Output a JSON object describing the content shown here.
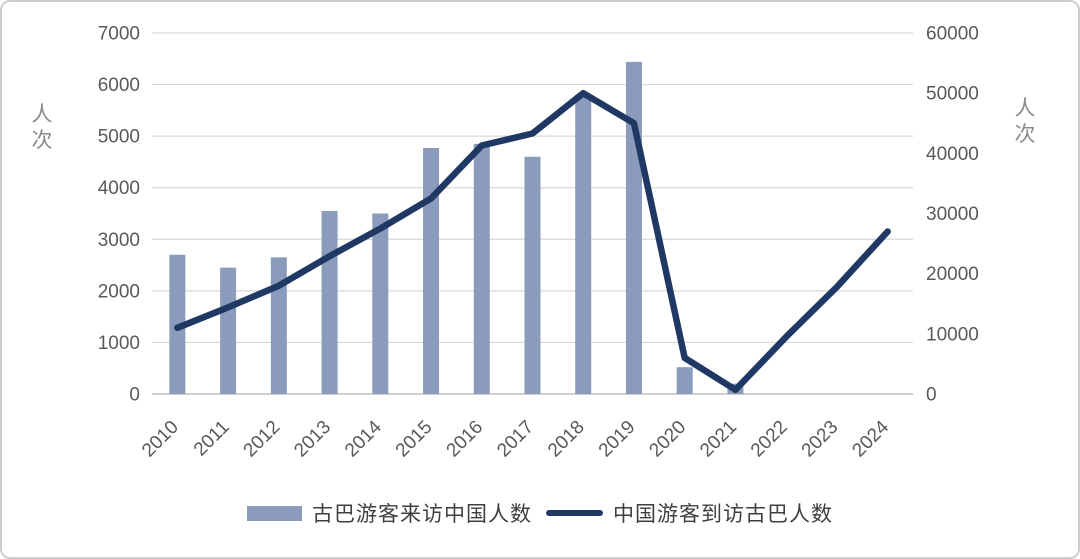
{
  "figure": {
    "left_axis_title": "人次",
    "right_axis_title": "人次"
  },
  "chart_data": {
    "type": "combo_bar_line_dual_axis",
    "categories": [
      "2010",
      "2011",
      "2012",
      "2013",
      "2014",
      "2015",
      "2016",
      "2017",
      "2018",
      "2019",
      "2020",
      "2021",
      "2022",
      "2023",
      "2024"
    ],
    "series": [
      {
        "name": "古巴游客来访中国人数",
        "type": "bar",
        "axis": "left",
        "color": "#8a9bbc",
        "values": [
          2700,
          2450,
          2650,
          3550,
          3500,
          4770,
          4850,
          4600,
          5800,
          6440,
          520,
          200,
          null,
          null,
          null
        ]
      },
      {
        "name": "中国游客到访古巴人数",
        "type": "line",
        "axis": "right",
        "color": "#1f3864",
        "values": [
          11000,
          14400,
          18000,
          22900,
          27500,
          32500,
          41300,
          43300,
          50000,
          45000,
          6000,
          700,
          9500,
          17800,
          27000
        ]
      }
    ],
    "left_axis": {
      "label": "人次",
      "min": 0,
      "max": 7000,
      "step": 1000,
      "ticks": [
        "7000",
        "6000",
        "5000",
        "4000",
        "3000",
        "2000",
        "1000",
        "0"
      ]
    },
    "right_axis": {
      "label": "人次",
      "min": 0,
      "max": 60000,
      "step": 10000,
      "ticks": [
        "60000",
        "50000",
        "40000",
        "30000",
        "20000",
        "10000",
        "0"
      ]
    },
    "grid": "horizontal",
    "legend_position": "bottom",
    "colors": {
      "gridline": "#d9d9d9",
      "axis_line": "#bfbfbf",
      "tick_label": "#595959",
      "axis_title": "#8a8a8a",
      "legend_text": "#3f3f3f"
    }
  }
}
